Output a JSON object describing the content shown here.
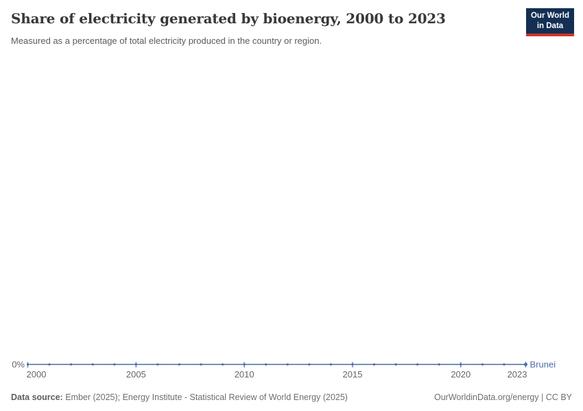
{
  "header": {
    "title": "Share of electricity generated by bioenergy, 2000 to 2023",
    "subtitle": "Measured as a percentage of total electricity produced in the country or region.",
    "logo": {
      "line1": "Our World",
      "line2": "in Data",
      "bg_color": "#132f54",
      "bar_color": "#d13328"
    }
  },
  "chart_data": {
    "type": "line",
    "title": "Share of electricity generated by bioenergy, 2000 to 2023",
    "xlabel": "",
    "ylabel": "",
    "y_zero_label": "0%",
    "ylim": [
      0,
      0
    ],
    "grid": false,
    "legend_position": "end-of-line",
    "x_ticks": [
      2000,
      2005,
      2010,
      2015,
      2020,
      2023
    ],
    "axis_label_color": "#666666",
    "series": [
      {
        "name": "Brunei",
        "color": "#4d6bac",
        "x": [
          2000,
          2001,
          2002,
          2003,
          2004,
          2005,
          2006,
          2007,
          2008,
          2009,
          2010,
          2011,
          2012,
          2013,
          2014,
          2015,
          2016,
          2017,
          2018,
          2019,
          2020,
          2021,
          2022,
          2023
        ],
        "values": [
          0,
          0,
          0,
          0,
          0,
          0,
          0,
          0,
          0,
          0,
          0,
          0,
          0,
          0,
          0,
          0,
          0,
          0,
          0,
          0,
          0,
          0,
          0,
          0
        ]
      }
    ]
  },
  "footer": {
    "source_label": "Data source:",
    "source_text": " Ember (2025); Energy Institute - Statistical Review of World Energy (2025)",
    "credit": "OurWorldinData.org/energy | CC BY"
  }
}
